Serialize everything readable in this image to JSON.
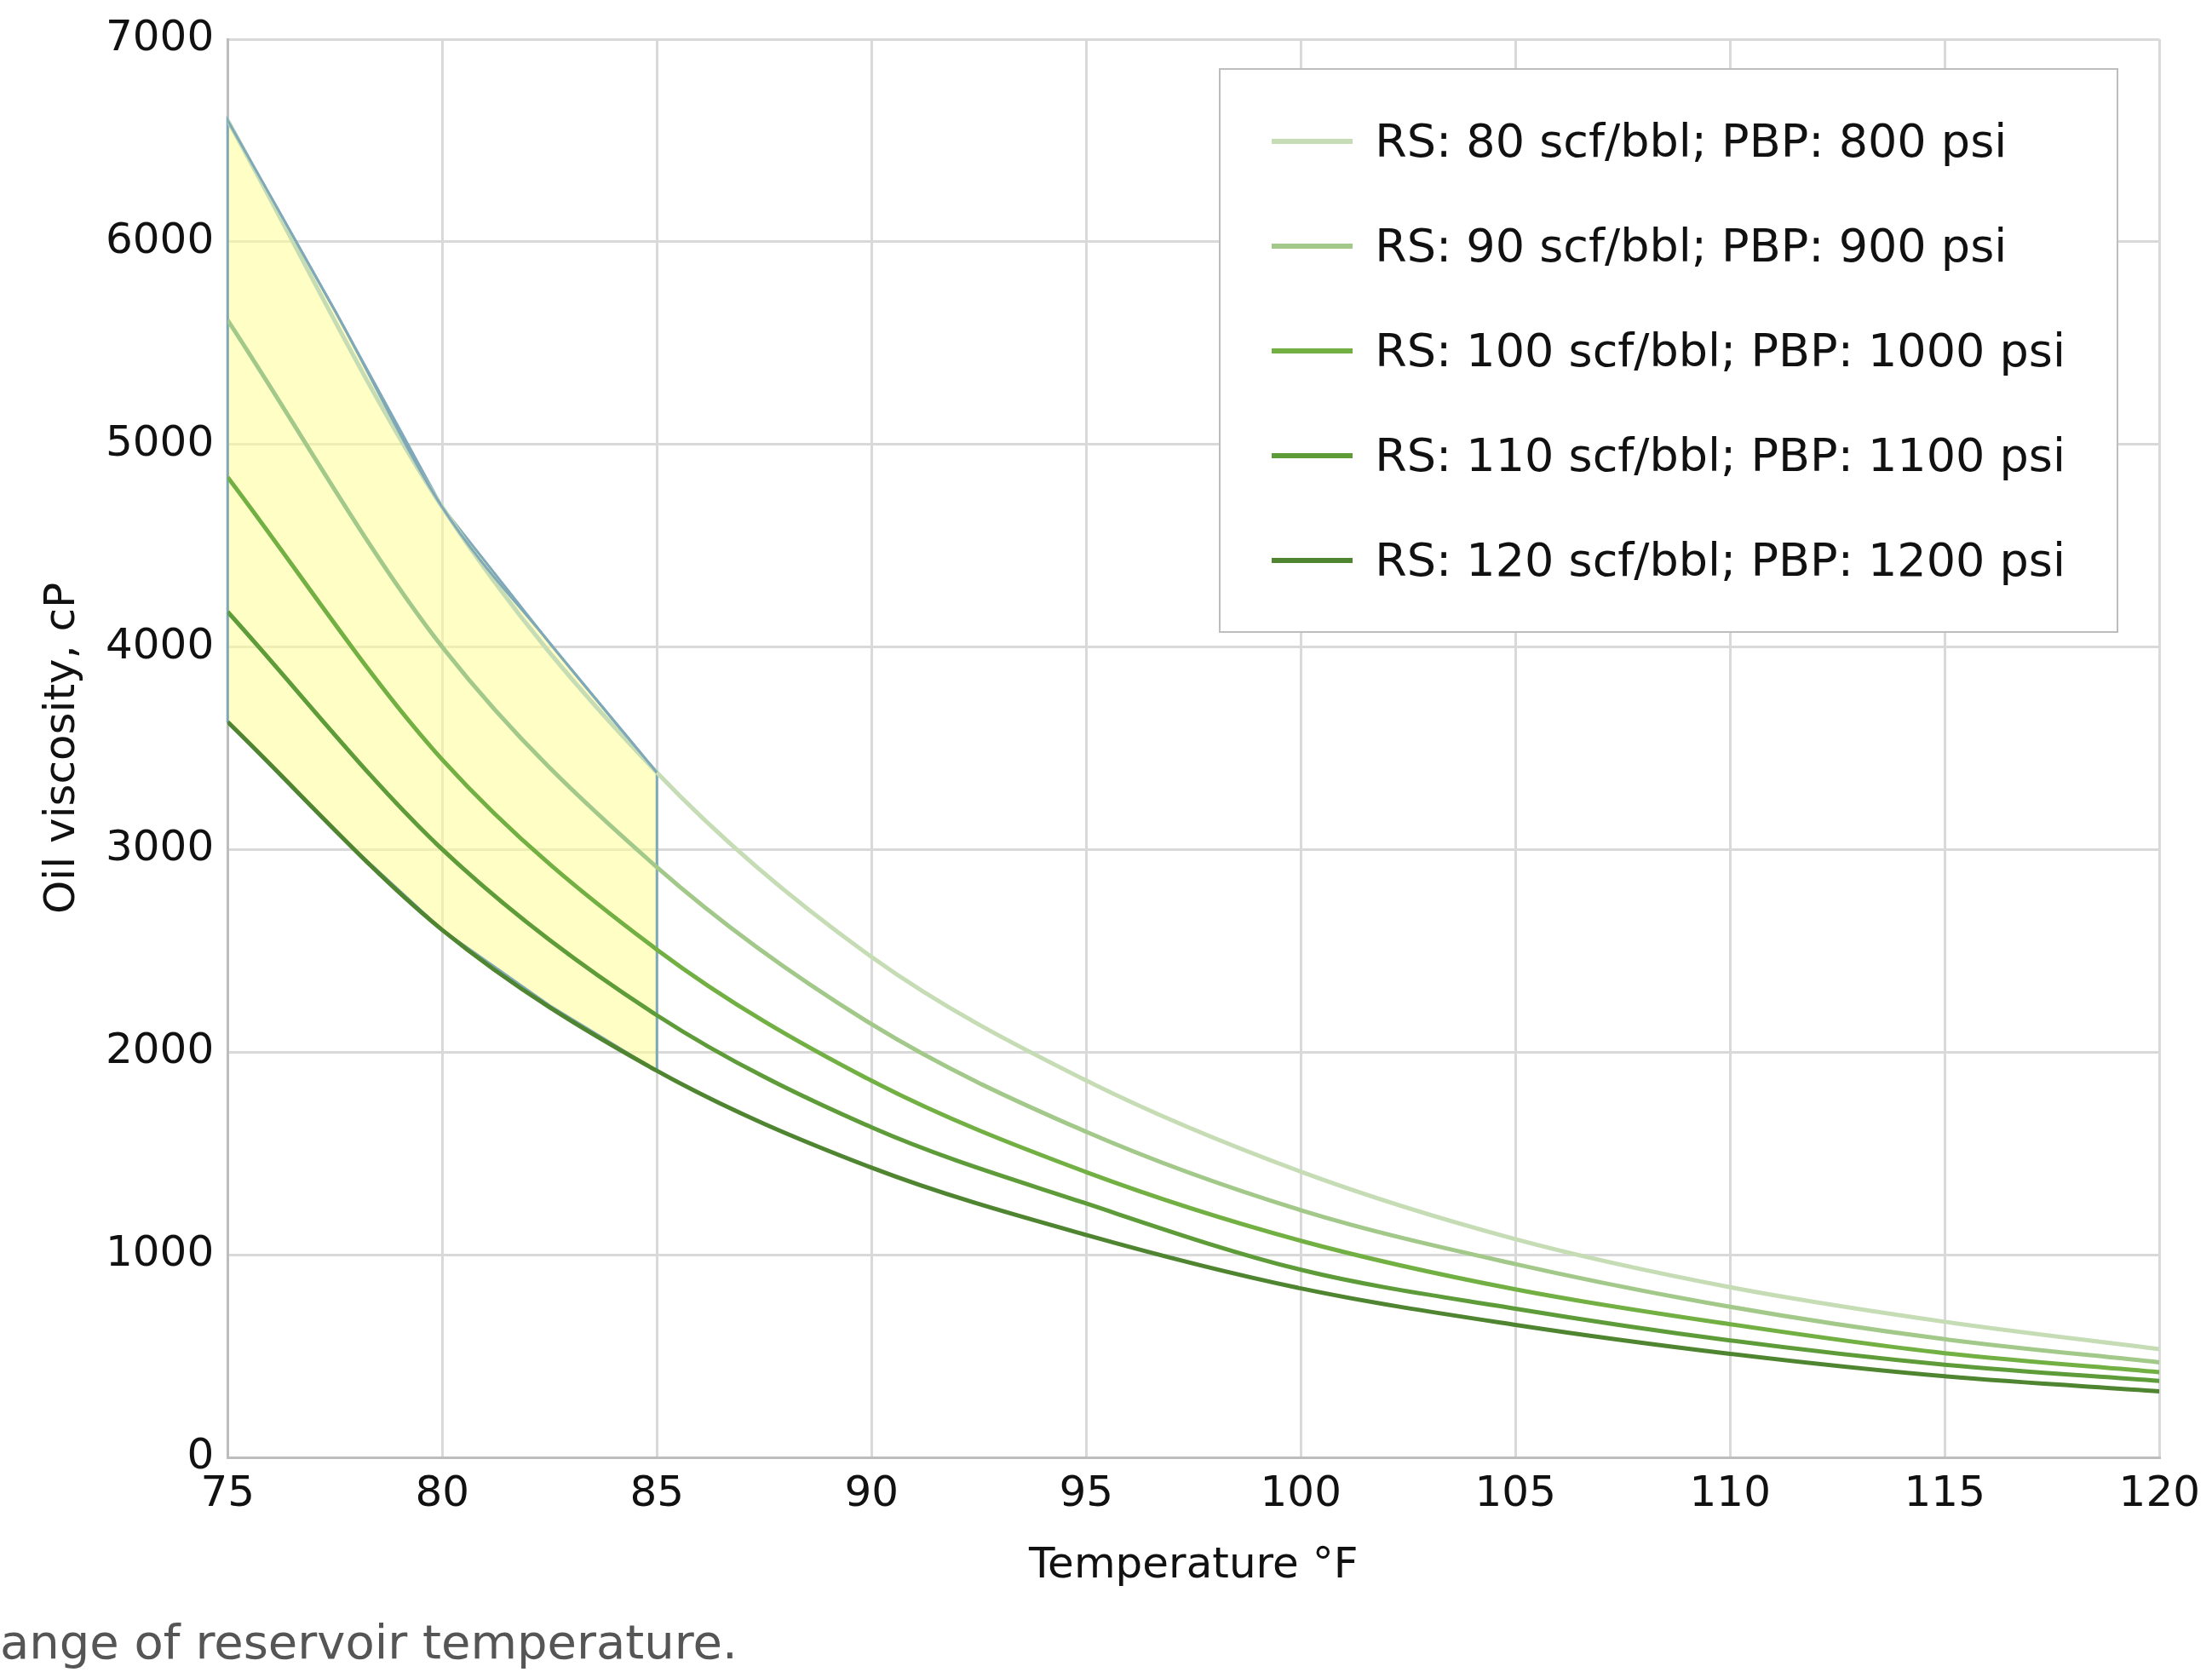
{
  "chart_data": {
    "type": "line",
    "xlabel": "Temperature °F",
    "ylabel": "Oil viscosity, cP",
    "x": [
      75,
      80,
      85,
      90,
      95,
      100,
      105,
      110,
      115,
      120
    ],
    "xlim": [
      75,
      120
    ],
    "xticks": [
      75,
      80,
      85,
      90,
      95,
      100,
      105,
      110,
      115,
      120
    ],
    "ylim": [
      0,
      7000
    ],
    "yticks": [
      0,
      1000,
      2000,
      3000,
      4000,
      5000,
      6000,
      7000
    ],
    "grid": true,
    "legend": "top right",
    "marker": "none",
    "line_style": "solid",
    "series": [
      {
        "type": "line",
        "color": "#7fa8b8",
        "x": [
          75,
          77.5,
          80,
          82.5,
          85
        ],
        "values": [
          6600,
          5660,
          4690,
          4020,
          3380
        ],
        "lower": [
          3630,
          3090,
          2603,
          2230,
          1908
        ],
        "upper": [
          6600,
          5660,
          4690,
          4020,
          3380
        ]
      },
      {
        "name": "RS: 80 scf/bbl; PBP: 800 psi",
        "color": "#c5dcb5",
        "values": [
          6600,
          4690,
          3380,
          2470,
          1860,
          1410,
          1077,
          840,
          669,
          534
        ]
      },
      {
        "name": "RS: 90 scf/bbl; PBP: 900 psi",
        "color": "#a3c98a",
        "values": [
          5613,
          4000,
          2913,
          2138,
          1607,
          1220,
          954,
          743,
          583,
          469
        ]
      },
      {
        "name": "RS: 100 scf/bbl; PBP: 1000 psi",
        "color": "#72b043",
        "values": [
          4838,
          3444,
          2506,
          1859,
          1408,
          1069,
          829,
          657,
          514,
          420
        ]
      },
      {
        "name": "RS: 110 scf/bbl; PBP: 1100 psi",
        "color": "#5e9c3a",
        "values": [
          4174,
          3001,
          2182,
          1629,
          1253,
          926,
          734,
          577,
          457,
          377
        ]
      },
      {
        "name": "RS: 120 scf/bbl; PBP: 1200 psi",
        "color": "#4f8530",
        "values": [
          3630,
          2603,
          1908,
          1430,
          1098,
          834,
          654,
          511,
          400,
          326
        ]
      }
    ],
    "annotations": [
      "ange of reservoir temperature."
    ]
  }
}
